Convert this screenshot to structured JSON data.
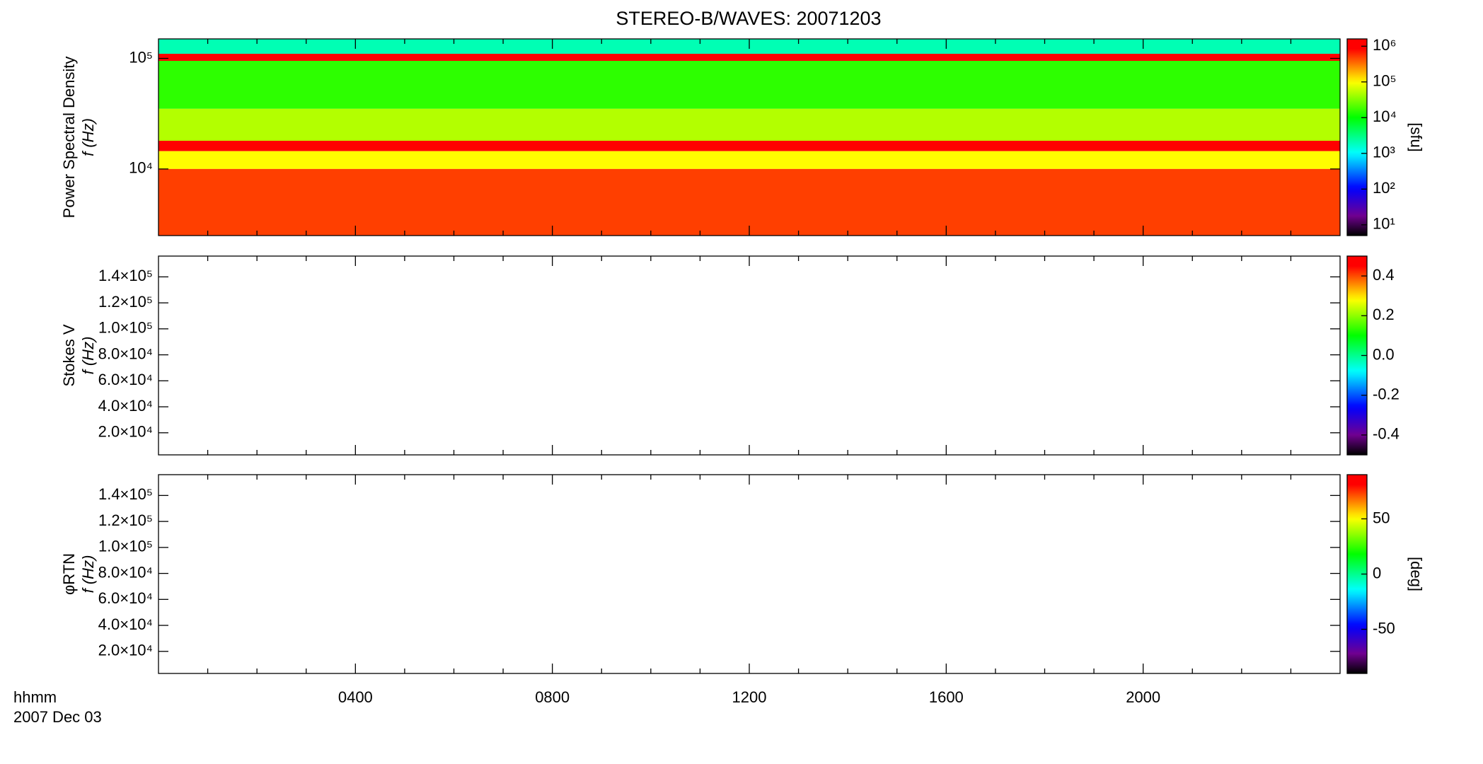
{
  "chart_data": [
    {
      "type": "heatmap",
      "title": "STEREO-B/WAVES: 20071203",
      "ylabel": "Power Spectral Density",
      "ylabel2": "f (Hz)",
      "yscale": "log",
      "ylim": [
        2500,
        150000
      ],
      "yticks": [
        {
          "value": 10000,
          "label": "10⁴"
        },
        {
          "value": 100000,
          "label": "10⁵"
        }
      ],
      "xlim": [
        0,
        24
      ],
      "xticks": [
        4,
        8,
        12,
        16,
        20
      ],
      "xminorticks": [
        1,
        2,
        3,
        5,
        6,
        7,
        9,
        10,
        11,
        13,
        14,
        15,
        17,
        18,
        19,
        21,
        22,
        23
      ],
      "frequency_edges": [
        150000,
        110000,
        95000,
        35000,
        18000,
        14500,
        10000,
        2500
      ],
      "values": [
        2000,
        1000000,
        15000,
        50000,
        1000000,
        100000,
        500000
      ],
      "colorbar": {
        "scale": "log",
        "lim": [
          5,
          1600000
        ],
        "label": "[sfu]",
        "ticks": [
          {
            "value": 10,
            "label": "10¹"
          },
          {
            "value": 100,
            "label": "10²"
          },
          {
            "value": 1000,
            "label": "10³"
          },
          {
            "value": 10000,
            "label": "10⁴"
          },
          {
            "value": 100000,
            "label": "10⁵"
          },
          {
            "value": 1000000,
            "label": "10⁶"
          }
        ]
      }
    },
    {
      "type": "heatmap",
      "ylabel": "Stokes V",
      "ylabel2": "f (Hz)",
      "yscale": "linear",
      "ylim": [
        3000,
        156000
      ],
      "yticks": [
        {
          "value": 20000,
          "label": "2.0×10⁴"
        },
        {
          "value": 40000,
          "label": "4.0×10⁴"
        },
        {
          "value": 60000,
          "label": "6.0×10⁴"
        },
        {
          "value": 80000,
          "label": "8.0×10⁴"
        },
        {
          "value": 100000,
          "label": "1.0×10⁵"
        },
        {
          "value": 120000,
          "label": "1.2×10⁵"
        },
        {
          "value": 140000,
          "label": "1.4×10⁵"
        }
      ],
      "xlim": [
        0,
        24
      ],
      "xticks": [
        4,
        8,
        12,
        16,
        20
      ],
      "xminorticks": [
        1,
        2,
        3,
        5,
        6,
        7,
        9,
        10,
        11,
        13,
        14,
        15,
        17,
        18,
        19,
        21,
        22,
        23
      ],
      "colorbar": {
        "scale": "linear",
        "lim": [
          -0.5,
          0.5
        ],
        "ticks": [
          -0.4,
          -0.2,
          {
            "value": 0,
            "label": "0.0"
          },
          0.2,
          0.4
        ]
      }
    },
    {
      "type": "heatmap",
      "ylabel": "φRTN",
      "ylabel2": "f (Hz)",
      "yscale": "linear",
      "ylim": [
        3000,
        156000
      ],
      "yticks": [
        {
          "value": 20000,
          "label": "2.0×10⁴"
        },
        {
          "value": 40000,
          "label": "4.0×10⁴"
        },
        {
          "value": 60000,
          "label": "6.0×10⁴"
        },
        {
          "value": 80000,
          "label": "8.0×10⁴"
        },
        {
          "value": 100000,
          "label": "1.0×10⁵"
        },
        {
          "value": 120000,
          "label": "1.2×10⁵"
        },
        {
          "value": 140000,
          "label": "1.4×10⁵"
        }
      ],
      "xlim": [
        0,
        24
      ],
      "xticks": [
        {
          "value": 4,
          "label": "0400"
        },
        {
          "value": 8,
          "label": "0800"
        },
        {
          "value": 12,
          "label": "1200"
        },
        {
          "value": 16,
          "label": "1600"
        },
        {
          "value": 20,
          "label": "2000"
        }
      ],
      "xminorticks": [
        1,
        2,
        3,
        5,
        6,
        7,
        9,
        10,
        11,
        13,
        14,
        15,
        17,
        18,
        19,
        21,
        22,
        23
      ],
      "xlabel": "hhmm",
      "date": "2007 Dec 03",
      "colorbar": {
        "scale": "linear",
        "lim": [
          -90,
          90
        ],
        "label": "[deg]",
        "ticks": [
          -50,
          0,
          50
        ]
      }
    }
  ]
}
